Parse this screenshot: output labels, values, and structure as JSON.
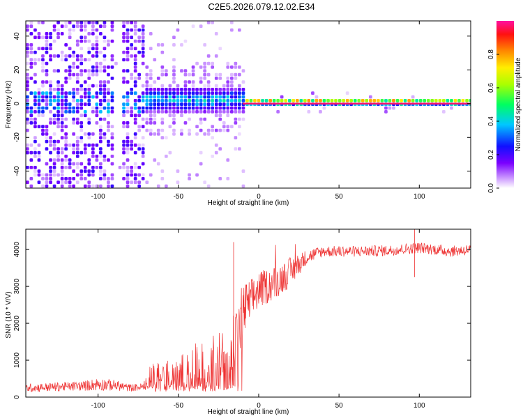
{
  "title": "C2E5.2026.079.12.02.E34",
  "chart_data": [
    {
      "type": "heatmap",
      "id": "spectrogram",
      "xlabel": "Height of straight line (km)",
      "ylabel": "Frequency (Hz)",
      "xlim": [
        -145,
        132
      ],
      "ylim": [
        -50,
        49
      ],
      "xticks": [
        -100,
        -50,
        0,
        50,
        100
      ],
      "xtick_labels": [
        "-100",
        "-50",
        "0",
        "50",
        "100"
      ],
      "yticks": [
        -40,
        -20,
        0,
        20,
        40
      ],
      "ytick_labels": [
        "-40",
        "-20",
        "0",
        "20",
        "40"
      ],
      "colorbar": {
        "label": "Normalized spectral amplitude",
        "range": [
          0.0,
          1.0
        ],
        "ticks": [
          0.0,
          0.2,
          0.4,
          0.6,
          0.8
        ],
        "tick_labels": [
          "0.0",
          "0.2",
          "0.4",
          "0.6",
          "0.8"
        ],
        "colormap": "rainbow"
      },
      "features": [
        {
          "x_range": [
            -145,
            -71
          ],
          "description": "broadband noise",
          "amplitude": 0.2
        },
        {
          "x_range": [
            -71,
            -10
          ],
          "center_hz": 1,
          "spread_hz": 7,
          "amplitude": 0.45
        },
        {
          "x_range": [
            -10,
            132
          ],
          "center_hz": 0,
          "spread_hz": 2,
          "amplitude": 0.95
        }
      ]
    },
    {
      "type": "line",
      "id": "snr",
      "xlabel": "Height of straight line (km)",
      "ylabel": "SNR (10 * V/V)",
      "xlim": [
        -145,
        132
      ],
      "ylim": [
        0,
        4550
      ],
      "xticks": [
        -100,
        -50,
        0,
        50,
        100
      ],
      "xtick_labels": [
        "-100",
        "-50",
        "0",
        "50",
        "100"
      ],
      "yticks": [
        0,
        1000,
        2000,
        3000,
        4000
      ],
      "ytick_labels": [
        "0",
        "1000",
        "2000",
        "3000",
        "4000"
      ],
      "color": "#ee3333",
      "x": [
        -145,
        -130,
        -110,
        -100,
        -90,
        -80,
        -72,
        -70,
        -60,
        -50,
        -40,
        -30,
        -20,
        -15,
        -10,
        -5,
        0,
        10,
        20,
        30,
        40,
        60,
        80,
        100,
        120,
        132
      ],
      "y": [
        250,
        270,
        300,
        350,
        320,
        250,
        280,
        500,
        650,
        750,
        850,
        1000,
        1100,
        1500,
        2300,
        2600,
        2900,
        3100,
        3400,
        3800,
        3950,
        3950,
        3970,
        4050,
        3950,
        4000
      ],
      "noise": [
        120,
        120,
        130,
        180,
        150,
        100,
        100,
        300,
        400,
        450,
        500,
        650,
        750,
        900,
        800,
        600,
        500,
        450,
        400,
        200,
        150,
        150,
        150,
        150,
        150,
        150
      ]
    }
  ]
}
